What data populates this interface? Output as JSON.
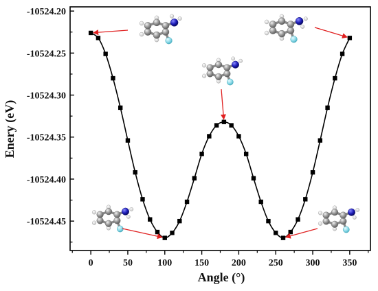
{
  "chart_data": {
    "type": "line",
    "title": "",
    "xlabel": "Angle (°)",
    "ylabel": "Enery (eV)",
    "xlim": [
      -28,
      378
    ],
    "ylim": [
      -10524.485,
      -10524.195
    ],
    "xticks": [
      0,
      50,
      100,
      150,
      200,
      250,
      300,
      350
    ],
    "yticks": [
      -10524.2,
      -10524.25,
      -10524.3,
      -10524.35,
      -10524.4,
      -10524.45
    ],
    "ytick_labels": [
      "-10524.20",
      "-10524.25",
      "-10524.30",
      "-10524.35",
      "-10524.40",
      "-10524.45"
    ],
    "series": [
      {
        "name": "",
        "marker": "square",
        "color": "#000000",
        "x": [
          0,
          10,
          20,
          30,
          40,
          50,
          60,
          70,
          80,
          90,
          100,
          110,
          120,
          130,
          140,
          150,
          160,
          170,
          180,
          190,
          200,
          210,
          220,
          230,
          240,
          250,
          260,
          270,
          280,
          290,
          300,
          310,
          320,
          330,
          340,
          350
        ],
        "y": [
          -10524.226,
          -10524.232,
          -10524.251,
          -10524.28,
          -10524.315,
          -10524.354,
          -10524.392,
          -10524.424,
          -10524.448,
          -10524.463,
          -10524.47,
          -10524.464,
          -10524.45,
          -10524.427,
          -10524.399,
          -10524.37,
          -10524.349,
          -10524.336,
          -10524.332,
          -10524.336,
          -10524.349,
          -10524.37,
          -10524.399,
          -10524.427,
          -10524.45,
          -10524.464,
          -10524.47,
          -10524.463,
          -10524.448,
          -10524.424,
          -10524.392,
          -10524.354,
          -10524.315,
          -10524.28,
          -10524.251,
          -10524.232
        ]
      }
    ],
    "annotations": [
      {
        "molecule": "fluoroaniline",
        "points_to": [
          0,
          -10524.226
        ],
        "arrow_color": "#e02020"
      },
      {
        "molecule": "fluoroaniline",
        "points_to": [
          350,
          -10524.232
        ],
        "arrow_color": "#e02020"
      },
      {
        "molecule": "fluoroaniline",
        "points_to": [
          180,
          -10524.332
        ],
        "arrow_color": "#e02020"
      },
      {
        "molecule": "fluoroaniline",
        "points_to": [
          100,
          -10524.47
        ],
        "arrow_color": "#e02020"
      },
      {
        "molecule": "fluoroaniline",
        "points_to": [
          260,
          -10524.47
        ],
        "arrow_color": "#e02020"
      }
    ],
    "grid": false,
    "legend": "none"
  }
}
